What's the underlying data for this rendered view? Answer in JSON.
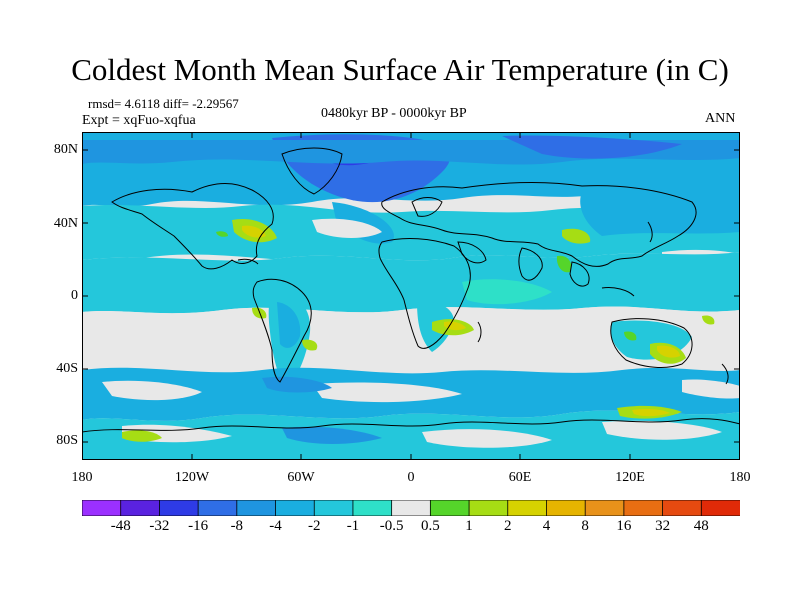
{
  "title": "Coldest Month Mean Surface Air Temperature (in C)",
  "stats": "rmsd= 4.6118  diff= -2.29567",
  "experiment": "Expt = xqFuo-xqfua",
  "period": "0480kyr BP - 0000kyr BP",
  "season": "ANN",
  "y_ticks": [
    "80N",
    "40N",
    "0",
    "40S",
    "80S"
  ],
  "x_ticks": [
    "180",
    "120W",
    "60W",
    "0",
    "60E",
    "120E",
    "180"
  ],
  "colorbar": {
    "labels": [
      "-48",
      "-32",
      "-16",
      "-8",
      "-4",
      "-2",
      "-1",
      "-0.5",
      "0.5",
      "1",
      "2",
      "4",
      "8",
      "16",
      "32",
      "48"
    ],
    "colors": [
      "#9b30ff",
      "#5a22e0",
      "#2e3be6",
      "#2f6ee6",
      "#1f95e0",
      "#1aaee0",
      "#24c7db",
      "#2ee0c8",
      "#e8e8e8",
      "#55d52a",
      "#a6dd14",
      "#d6d200",
      "#e6b400",
      "#e8921a",
      "#e86e12",
      "#e64a10",
      "#e02a08"
    ]
  },
  "map_colors": {
    "ocean_neutral": "#e8e8e8",
    "cold_1": "#2ee0c8",
    "cold_2": "#24c7db",
    "cold_3": "#1aaee0",
    "cold_4": "#1f95e0",
    "cold_5": "#2f6ee6",
    "cold_6": "#2e3be6",
    "warm_1": "#55d52a",
    "warm_2": "#a6dd14",
    "warm_3": "#d6d200",
    "coast": "#000000"
  }
}
